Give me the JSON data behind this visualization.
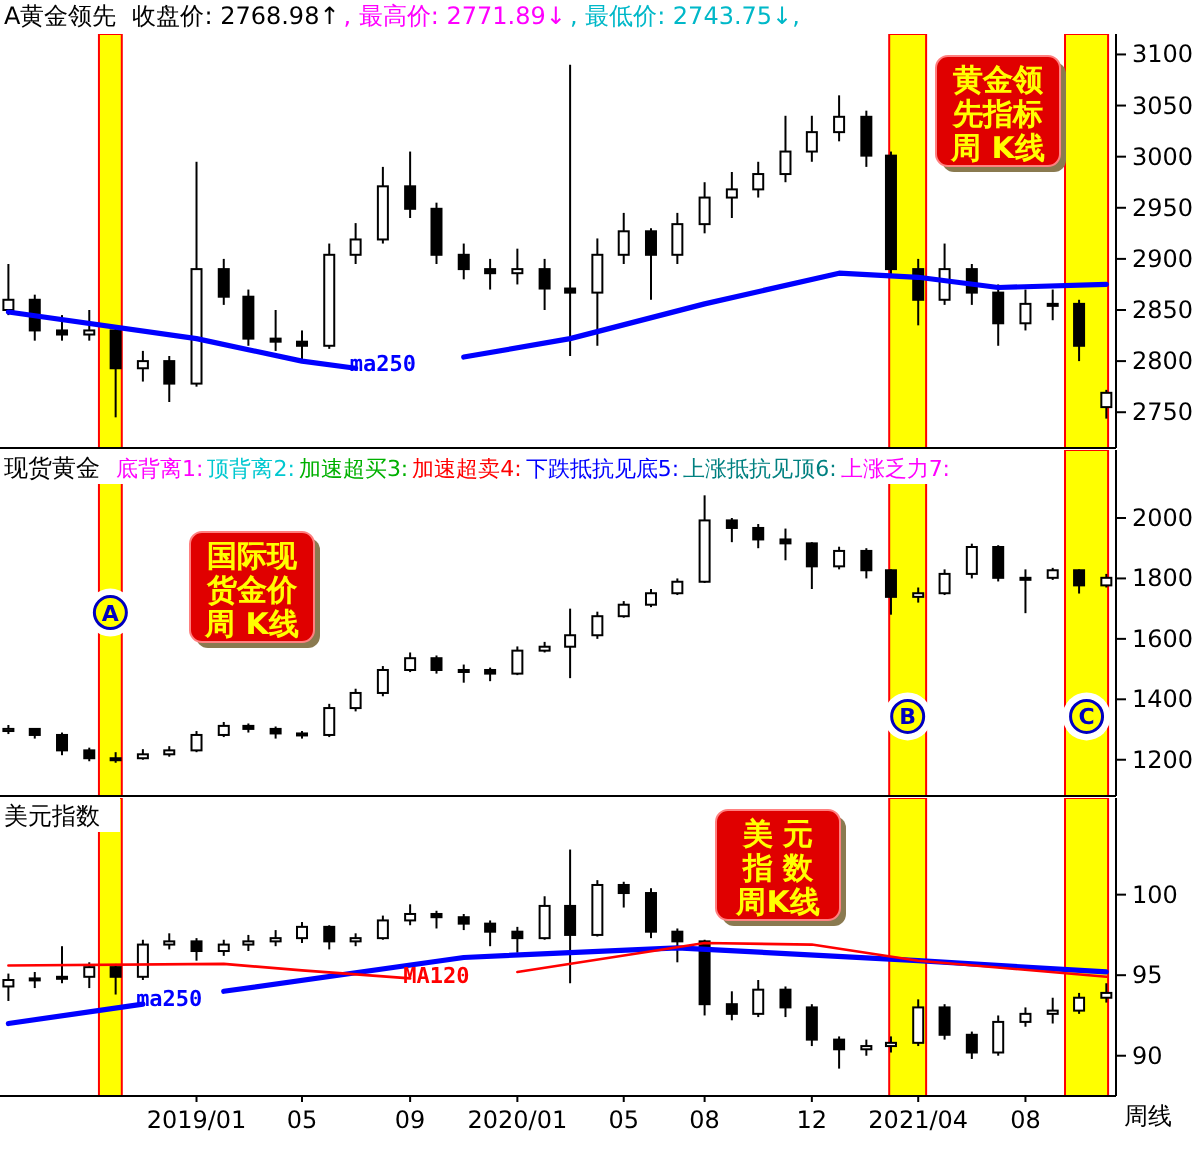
{
  "chart_data": [
    {
      "type": "candlestick",
      "title": "A黄金领先",
      "subtitle": "黄金领先指标周 K线",
      "annotations": [
        "收盘价: 2768.98↑",
        ", 最高价: 2771.89↓",
        ", 最低价: 2743.75↓,"
      ],
      "color": "#000000",
      "tick_labels": "y",
      "x": [
        "2018-06",
        "2018-07",
        "2018-08",
        "2018-09",
        "2018-10",
        "2018-11",
        "2018-12",
        "2019-01",
        "2019-02",
        "2019-03",
        "2019-04",
        "2019-05",
        "2019-06",
        "2019-07",
        "2019-08",
        "2019-09",
        "2019-10",
        "2019-11",
        "2019-12",
        "2020-01",
        "2020-02",
        "2020-03",
        "2020-04",
        "2020-05",
        "2020-06",
        "2020-07",
        "2020-08",
        "2020-09",
        "2020-10",
        "2020-11",
        "2020-12",
        "2021-01",
        "2021-02",
        "2021-03",
        "2021-04",
        "2021-05",
        "2021-06",
        "2021-07",
        "2021-08",
        "2021-09",
        "2021-10",
        "2021-11"
      ],
      "ohlc": [
        [
          2850,
          2895,
          2845,
          2860
        ],
        [
          2860,
          2865,
          2820,
          2830
        ],
        [
          2830,
          2845,
          2820,
          2826
        ],
        [
          2826,
          2850,
          2820,
          2830
        ],
        [
          2830,
          2835,
          2745,
          2793
        ],
        [
          2793,
          2810,
          2780,
          2800
        ],
        [
          2800,
          2805,
          2760,
          2778
        ],
        [
          2778,
          2995,
          2775,
          2890
        ],
        [
          2890,
          2900,
          2855,
          2863
        ],
        [
          2863,
          2870,
          2815,
          2822
        ],
        [
          2822,
          2850,
          2810,
          2819
        ],
        [
          2819,
          2830,
          2800,
          2815
        ],
        [
          2815,
          2915,
          2812,
          2904
        ],
        [
          2904,
          2935,
          2895,
          2919
        ],
        [
          2919,
          2990,
          2915,
          2971
        ],
        [
          2971,
          3005,
          2940,
          2949
        ],
        [
          2949,
          2955,
          2895,
          2904
        ],
        [
          2904,
          2915,
          2880,
          2890
        ],
        [
          2890,
          2900,
          2870,
          2886
        ],
        [
          2886,
          2910,
          2875,
          2890
        ],
        [
          2890,
          2900,
          2850,
          2871
        ],
        [
          2871,
          3090,
          2805,
          2867
        ],
        [
          2867,
          2920,
          2815,
          2904
        ],
        [
          2904,
          2945,
          2895,
          2927
        ],
        [
          2927,
          2930,
          2860,
          2904
        ],
        [
          2904,
          2945,
          2895,
          2934
        ],
        [
          2934,
          2975,
          2925,
          2960
        ],
        [
          2960,
          2985,
          2940,
          2968
        ],
        [
          2968,
          2995,
          2960,
          2983
        ],
        [
          2983,
          3040,
          2975,
          3005
        ],
        [
          3005,
          3040,
          2995,
          3024
        ],
        [
          3024,
          3060,
          3015,
          3039
        ],
        [
          3039,
          3045,
          2990,
          3001
        ],
        [
          3001,
          3005,
          2885,
          2890
        ],
        [
          2890,
          2900,
          2835,
          2860
        ],
        [
          2860,
          2915,
          2855,
          2890
        ],
        [
          2890,
          2895,
          2855,
          2867
        ],
        [
          2867,
          2875,
          2815,
          2837
        ],
        [
          2837,
          2870,
          2830,
          2856
        ],
        [
          2856,
          2870,
          2840,
          2856
        ],
        [
          2856,
          2860,
          2800,
          2815
        ],
        [
          2755,
          2771.89,
          2743.75,
          2768.98
        ]
      ],
      "series": [
        {
          "type": "line",
          "name": "ma250",
          "color": "#0000ff",
          "x": [
            "2018-06",
            "2019-01",
            "2019-05",
            "2019-07",
            "2019-08",
            "2019-11",
            "2020-03",
            "2020-08",
            "2021-01",
            "2021-04",
            "2021-07",
            "2021-11"
          ],
          "values": [
            2848,
            2822,
            2800,
            2793,
            null,
            2804,
            2822,
            2856,
            2886,
            2882,
            2872,
            2875
          ]
        }
      ],
      "xlim": [
        "2018-05-27",
        "2021-11-12"
      ],
      "ylim": [
        2715,
        3120
      ],
      "yticks": [
        2750,
        2800,
        2850,
        2900,
        2950,
        3000,
        3050,
        3100
      ],
      "bands": [
        {
          "axis": "x",
          "from": "2018-09-12",
          "to": "2018-10-08",
          "color": "#ffff00"
        },
        {
          "axis": "x",
          "from": "2021-02-27",
          "to": "2021-04-10",
          "color": "#ffff00"
        },
        {
          "axis": "x",
          "from": "2021-09-15",
          "to": "2021-11-03",
          "color": "#ffff00"
        }
      ]
    },
    {
      "type": "candlestick",
      "title": "现货黄金",
      "subtitle": "国际现货金价周 K线",
      "annotations": [
        "底背离1:",
        "顶背离2:",
        "加速超买3:",
        "加速超卖4:",
        "下跌抵抗见底5:",
        "上涨抵抗见顶6:",
        "上涨乏力7:"
      ],
      "color": "#000000",
      "tick_labels": "y",
      "x": [
        "2018-06",
        "2018-07",
        "2018-08",
        "2018-09",
        "2018-10",
        "2018-11",
        "2018-12",
        "2019-01",
        "2019-02",
        "2019-03",
        "2019-04",
        "2019-05",
        "2019-06",
        "2019-07",
        "2019-08",
        "2019-09",
        "2019-10",
        "2019-11",
        "2019-12",
        "2020-01",
        "2020-02",
        "2020-03",
        "2020-04",
        "2020-05",
        "2020-06",
        "2020-07",
        "2020-08",
        "2020-09",
        "2020-10",
        "2020-11",
        "2020-12",
        "2021-01",
        "2021-02",
        "2021-03",
        "2021-04",
        "2021-05",
        "2021-06",
        "2021-07",
        "2021-08",
        "2021-09",
        "2021-10",
        "2021-11"
      ],
      "ohlc": [
        [
          1295,
          1315,
          1285,
          1302
        ],
        [
          1302,
          1305,
          1270,
          1282
        ],
        [
          1282,
          1290,
          1215,
          1231
        ],
        [
          1231,
          1240,
          1195,
          1205
        ],
        [
          1205,
          1225,
          1190,
          1205
        ],
        [
          1205,
          1235,
          1200,
          1218
        ],
        [
          1218,
          1245,
          1210,
          1231
        ],
        [
          1231,
          1295,
          1225,
          1282
        ],
        [
          1282,
          1325,
          1275,
          1312
        ],
        [
          1312,
          1320,
          1290,
          1302
        ],
        [
          1302,
          1310,
          1270,
          1287
        ],
        [
          1287,
          1295,
          1270,
          1282
        ],
        [
          1282,
          1385,
          1275,
          1371
        ],
        [
          1371,
          1435,
          1360,
          1421
        ],
        [
          1421,
          1510,
          1410,
          1497
        ],
        [
          1497,
          1555,
          1490,
          1536
        ],
        [
          1536,
          1545,
          1485,
          1497
        ],
        [
          1497,
          1515,
          1455,
          1497
        ],
        [
          1497,
          1505,
          1460,
          1485
        ],
        [
          1485,
          1575,
          1480,
          1561
        ],
        [
          1561,
          1590,
          1555,
          1574
        ],
        [
          1574,
          1700,
          1470,
          1612
        ],
        [
          1612,
          1690,
          1600,
          1675
        ],
        [
          1675,
          1725,
          1670,
          1713
        ],
        [
          1713,
          1765,
          1705,
          1751
        ],
        [
          1751,
          1800,
          1745,
          1789
        ],
        [
          1789,
          2075,
          1785,
          1992
        ],
        [
          1992,
          2000,
          1920,
          1967
        ],
        [
          1967,
          1980,
          1900,
          1929
        ],
        [
          1929,
          1965,
          1860,
          1916
        ],
        [
          1916,
          1920,
          1765,
          1840
        ],
        [
          1840,
          1905,
          1830,
          1891
        ],
        [
          1891,
          1900,
          1800,
          1827
        ],
        [
          1827,
          1830,
          1680,
          1739
        ],
        [
          1739,
          1770,
          1720,
          1751
        ],
        [
          1751,
          1830,
          1745,
          1815
        ],
        [
          1815,
          1915,
          1800,
          1904
        ],
        [
          1904,
          1910,
          1790,
          1802
        ],
        [
          1802,
          1830,
          1685,
          1802
        ],
        [
          1802,
          1835,
          1795,
          1827
        ],
        [
          1827,
          1830,
          1750,
          1777
        ],
        [
          1777,
          1815,
          1770,
          1802
        ]
      ],
      "xlim": [
        "2018-05-27",
        "2021-11-12"
      ],
      "ylim": [
        1080,
        2225
      ],
      "yticks": [
        1200,
        1400,
        1600,
        1800,
        2000
      ],
      "bands": [
        {
          "axis": "x",
          "from": "2018-09-12",
          "to": "2018-10-08",
          "label": "A",
          "color": "#ffff00"
        },
        {
          "axis": "x",
          "from": "2021-02-27",
          "to": "2021-04-10",
          "label": "B",
          "color": "#ffff00"
        },
        {
          "axis": "x",
          "from": "2021-09-15",
          "to": "2021-11-03",
          "label": "C",
          "color": "#ffff00"
        }
      ]
    },
    {
      "type": "candlestick",
      "title": "美元指数",
      "subtitle": "美 元指 数周K线",
      "xlabel": "周线",
      "color": "#000000",
      "x": [
        "2018-06",
        "2018-07",
        "2018-08",
        "2018-09",
        "2018-10",
        "2018-11",
        "2018-12",
        "2019-01",
        "2019-02",
        "2019-03",
        "2019-04",
        "2019-05",
        "2019-06",
        "2019-07",
        "2019-08",
        "2019-09",
        "2019-10",
        "2019-11",
        "2019-12",
        "2020-01",
        "2020-02",
        "2020-03",
        "2020-04",
        "2020-05",
        "2020-06",
        "2020-07",
        "2020-08",
        "2020-09",
        "2020-10",
        "2020-11",
        "2020-12",
        "2021-01",
        "2021-02",
        "2021-03",
        "2021-04",
        "2021-05",
        "2021-06",
        "2021-07",
        "2021-08",
        "2021-09",
        "2021-10",
        "2021-11"
      ],
      "ohlc": [
        [
          94.3,
          95.1,
          93.4,
          94.7
        ],
        [
          94.7,
          95.2,
          94.2,
          94.8
        ],
        [
          94.8,
          96.8,
          94.5,
          94.9
        ],
        [
          94.9,
          95.8,
          94.2,
          95.5
        ],
        [
          95.5,
          95.7,
          93.8,
          94.9
        ],
        [
          94.9,
          97.2,
          94.7,
          96.9
        ],
        [
          96.9,
          97.6,
          96.6,
          97.1
        ],
        [
          97.1,
          97.3,
          95.9,
          96.5
        ],
        [
          96.5,
          97.2,
          96.2,
          96.9
        ],
        [
          96.9,
          97.5,
          96.5,
          97.1
        ],
        [
          97.1,
          97.8,
          96.8,
          97.3
        ],
        [
          97.3,
          98.3,
          97.0,
          98.0
        ],
        [
          98.0,
          98.1,
          96.6,
          97.1
        ],
        [
          97.1,
          97.6,
          96.8,
          97.3
        ],
        [
          97.3,
          98.7,
          97.2,
          98.4
        ],
        [
          98.4,
          99.4,
          98.1,
          98.8
        ],
        [
          98.8,
          99.0,
          97.9,
          98.6
        ],
        [
          98.6,
          98.8,
          97.8,
          98.2
        ],
        [
          98.2,
          98.4,
          96.8,
          97.7
        ],
        [
          97.7,
          98.0,
          96.4,
          97.3
        ],
        [
          97.3,
          99.9,
          97.2,
          99.3
        ],
        [
          99.3,
          102.8,
          94.5,
          97.5
        ],
        [
          97.5,
          100.9,
          97.4,
          100.6
        ],
        [
          100.6,
          100.8,
          99.2,
          100.1
        ],
        [
          100.1,
          100.4,
          97.3,
          97.7
        ],
        [
          97.7,
          97.9,
          95.8,
          97.1
        ],
        [
          97.1,
          97.2,
          92.5,
          93.2
        ],
        [
          93.2,
          94.0,
          92.2,
          92.6
        ],
        [
          92.6,
          94.7,
          92.4,
          94.1
        ],
        [
          94.1,
          94.3,
          92.4,
          93.0
        ],
        [
          93.0,
          93.2,
          90.6,
          91.0
        ],
        [
          91.0,
          91.2,
          89.2,
          90.4
        ],
        [
          90.4,
          91.0,
          90.0,
          90.6
        ],
        [
          90.6,
          91.2,
          90.2,
          90.8
        ],
        [
          90.8,
          93.5,
          90.6,
          93.0
        ],
        [
          93.0,
          93.2,
          91.0,
          91.3
        ],
        [
          91.3,
          91.5,
          89.8,
          90.2
        ],
        [
          90.2,
          92.5,
          90.0,
          92.1
        ],
        [
          92.1,
          93.0,
          91.8,
          92.6
        ],
        [
          92.6,
          93.6,
          92.0,
          92.8
        ],
        [
          92.8,
          93.9,
          92.6,
          93.6
        ],
        [
          93.6,
          94.5,
          93.3,
          93.9
        ]
      ],
      "series": [
        {
          "type": "line",
          "name": "ma250",
          "color": "#0000ff",
          "x": [
            "2018-06",
            "2018-11",
            "2018-12",
            "2019-02",
            "2019-11",
            "2020-07",
            "2021-04",
            "2021-11"
          ],
          "values": [
            92.0,
            93.2,
            null,
            94.0,
            96.1,
            96.7,
            95.9,
            95.2
          ]
        },
        {
          "type": "line",
          "name": "MA120",
          "color": "#ff0000",
          "x": [
            "2018-06",
            "2019-02",
            "2019-05",
            "2019-09",
            "2019-10",
            "2020-01",
            "2020-08",
            "2020-12",
            "2021-04",
            "2021-11"
          ],
          "values": [
            95.6,
            95.7,
            95.3,
            94.8,
            null,
            95.2,
            97.0,
            96.9,
            95.9,
            94.9
          ]
        }
      ],
      "xlim": [
        "2018-05-27",
        "2021-11-12"
      ],
      "ylim": [
        87.5,
        106
      ],
      "yticks": [
        90,
        95,
        100
      ],
      "xticks": [
        {
          "value": "2019-01",
          "label": "2019/01"
        },
        {
          "value": "2019-05",
          "label": "05"
        },
        {
          "value": "2019-09",
          "label": "09"
        },
        {
          "value": "2020-01",
          "label": "2020/01"
        },
        {
          "value": "2020-05",
          "label": "05"
        },
        {
          "value": "2020-08",
          "label": "08"
        },
        {
          "value": "2020-12",
          "label": "12"
        },
        {
          "value": "2021-04",
          "label": "2021/04"
        },
        {
          "value": "2021-08",
          "label": "08"
        }
      ],
      "bands": [
        {
          "axis": "x",
          "from": "2018-09-12",
          "to": "2018-10-08",
          "color": "#ffff00"
        },
        {
          "axis": "x",
          "from": "2021-02-27",
          "to": "2021-04-10",
          "color": "#ffff00"
        },
        {
          "axis": "x",
          "from": "2021-09-15",
          "to": "2021-11-03",
          "color": "#ffff00"
        }
      ]
    }
  ]
}
